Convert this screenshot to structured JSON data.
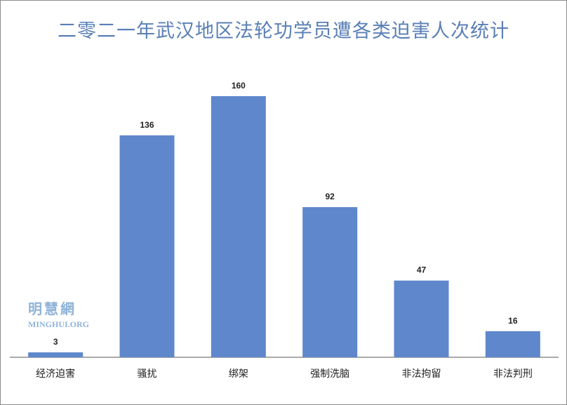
{
  "chart_data": {
    "type": "bar",
    "title": "二零二一年武汉地区法轮功学员遭各类迫害人次统计",
    "categories": [
      "经济迫害",
      "骚扰",
      "绑架",
      "强制洗脑",
      "非法拘留",
      "非法判刑"
    ],
    "values": [
      3,
      136,
      160,
      92,
      47,
      16
    ],
    "ylim": [
      0,
      160
    ],
    "grid": false,
    "legend": "none",
    "bar_color": "#5e87cc"
  },
  "watermark": {
    "cn": "明慧網",
    "en": "MINGHUI.ORG"
  }
}
